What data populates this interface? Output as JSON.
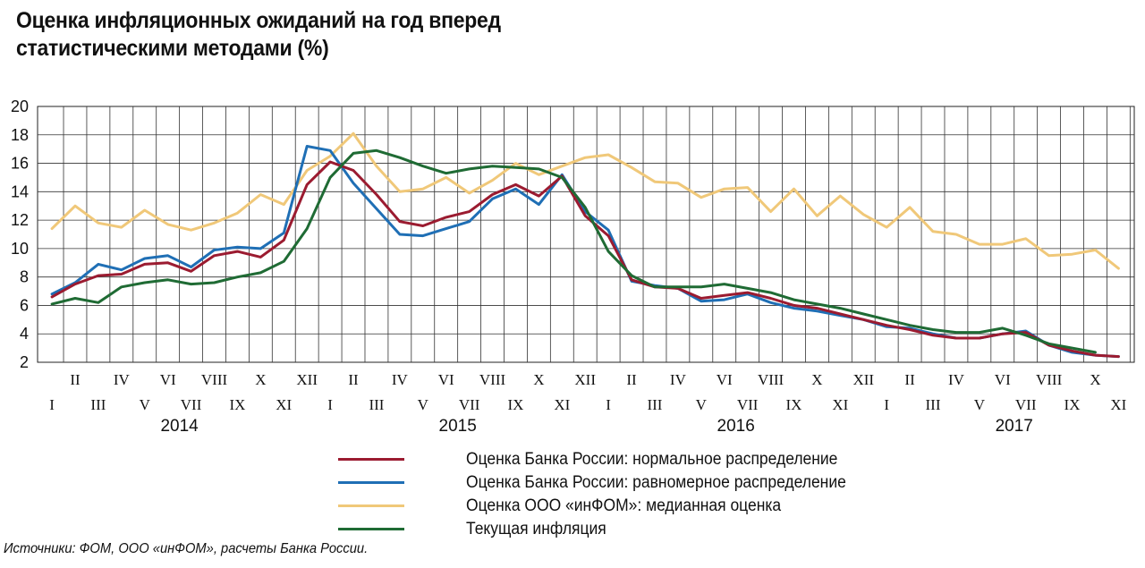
{
  "chart_data": {
    "type": "line",
    "title_lines": [
      "Оценка инфляционных ожиданий на год вперед",
      "статистическими методами (%)"
    ],
    "ylim": [
      2,
      20
    ],
    "yticks": [
      2,
      4,
      6,
      8,
      10,
      12,
      14,
      16,
      18,
      20
    ],
    "grid": true,
    "legend_position": "bottom",
    "x": [
      "2014-01",
      "2014-02",
      "2014-03",
      "2014-04",
      "2014-05",
      "2014-06",
      "2014-07",
      "2014-08",
      "2014-09",
      "2014-10",
      "2014-11",
      "2014-12",
      "2015-01",
      "2015-02",
      "2015-03",
      "2015-04",
      "2015-05",
      "2015-06",
      "2015-07",
      "2015-08",
      "2015-09",
      "2015-10",
      "2015-11",
      "2015-12",
      "2016-01",
      "2016-02",
      "2016-03",
      "2016-04",
      "2016-05",
      "2016-06",
      "2016-07",
      "2016-08",
      "2016-09",
      "2016-10",
      "2016-11",
      "2016-12",
      "2017-01",
      "2017-02",
      "2017-03",
      "2017-04",
      "2017-05",
      "2017-06",
      "2017-07",
      "2017-08",
      "2017-09",
      "2017-10",
      "2017-11"
    ],
    "month_labels": [
      "I",
      "II",
      "III",
      "IV",
      "V",
      "VI",
      "VII",
      "VIII",
      "IX",
      "X",
      "XI",
      "XII",
      "I",
      "II",
      "III",
      "IV",
      "V",
      "VI",
      "VII",
      "VIII",
      "IX",
      "X",
      "XI",
      "XII",
      "I",
      "II",
      "III",
      "IV",
      "V",
      "VI",
      "VII",
      "VIII",
      "IX",
      "X",
      "XI",
      "XII",
      "I",
      "II",
      "III",
      "IV",
      "V",
      "VI",
      "VII",
      "VIII",
      "IX",
      "X",
      "XI"
    ],
    "year_labels": [
      {
        "label": "2014",
        "at_month": 5.5
      },
      {
        "label": "2015",
        "at_month": 17.5
      },
      {
        "label": "2016",
        "at_month": 29.5
      },
      {
        "label": "2017",
        "at_month": 41.5
      }
    ],
    "series": [
      {
        "name": "Оценка Банка России: нормальное распределение",
        "color": "#9b1b30",
        "values": [
          6.6,
          7.5,
          8.1,
          8.2,
          8.9,
          9.0,
          8.4,
          9.5,
          9.8,
          9.4,
          10.6,
          14.5,
          16.1,
          15.5,
          13.8,
          11.9,
          11.6,
          12.2,
          12.6,
          13.8,
          14.5,
          13.7,
          15.1,
          12.3,
          10.9,
          7.8,
          7.3,
          7.2,
          6.5,
          6.7,
          6.9,
          6.5,
          6.0,
          5.8,
          5.4,
          5.0,
          4.6,
          4.3,
          3.9,
          3.7,
          3.7,
          4.0,
          4.1,
          3.2,
          2.8,
          2.5,
          2.4
        ]
      },
      {
        "name": "Оценка Банка России: равномерное распределение",
        "color": "#1f6fb5",
        "values": [
          6.8,
          7.6,
          8.9,
          8.5,
          9.3,
          9.5,
          8.7,
          9.9,
          10.1,
          10.0,
          11.1,
          17.2,
          16.9,
          14.6,
          12.8,
          11.0,
          10.9,
          11.4,
          11.9,
          13.5,
          14.2,
          13.1,
          15.2,
          12.6,
          11.3,
          7.7,
          7.4,
          7.2,
          6.3,
          6.4,
          6.8,
          6.2,
          5.8,
          5.6,
          5.3,
          5.0,
          4.5,
          4.4,
          4.0,
          3.7,
          3.7,
          4.0,
          4.2,
          3.2,
          2.7,
          2.5,
          2.4
        ]
      },
      {
        "name": "Оценка ООО «инФОМ»: медианная оценка",
        "color": "#f0c879",
        "values": [
          11.4,
          13.0,
          11.8,
          11.5,
          12.7,
          11.7,
          11.3,
          11.8,
          12.5,
          13.8,
          13.1,
          15.5,
          16.5,
          18.1,
          15.8,
          14.0,
          14.2,
          15.0,
          13.9,
          14.8,
          16.0,
          15.2,
          15.8,
          16.4,
          16.6,
          15.7,
          14.7,
          14.6,
          13.6,
          14.2,
          14.3,
          12.6,
          14.2,
          12.3,
          13.7,
          12.4,
          11.5,
          12.9,
          11.2,
          11.0,
          10.3,
          10.3,
          10.7,
          9.5,
          9.6,
          9.9,
          8.6
        ]
      },
      {
        "name": "Текущая инфляция",
        "color": "#1f6b34",
        "values": [
          6.1,
          6.5,
          6.2,
          7.3,
          7.6,
          7.8,
          7.5,
          7.6,
          8.0,
          8.3,
          9.1,
          11.4,
          15.0,
          16.7,
          16.9,
          16.4,
          15.8,
          15.3,
          15.6,
          15.8,
          15.7,
          15.6,
          15.0,
          12.9,
          9.8,
          8.1,
          7.3,
          7.3,
          7.3,
          7.5,
          7.2,
          6.9,
          6.4,
          6.1,
          5.8,
          5.4,
          5.0,
          4.6,
          4.3,
          4.1,
          4.1,
          4.4,
          3.9,
          3.3,
          3.0,
          2.7,
          null
        ]
      }
    ]
  },
  "source_note": "Источники: ФОМ, ООО «инФОМ», расчеты Банка России."
}
